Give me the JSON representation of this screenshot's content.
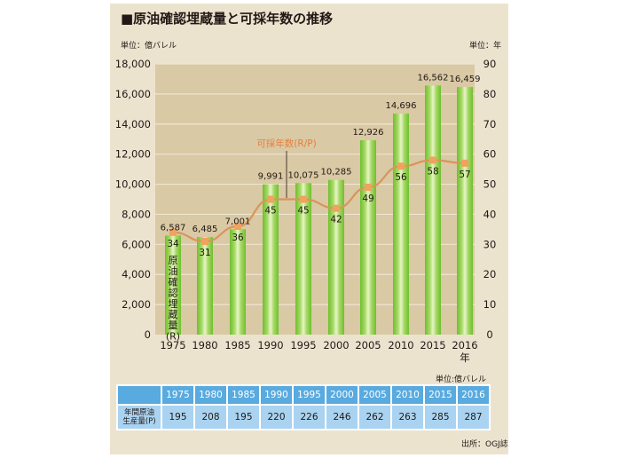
{
  "title": "■原油確認埋蔵量と可採年数の推移",
  "left_unit": "単位：億バレル",
  "right_unit": "単位：年",
  "table_unit": "単位:億バレル",
  "source": "出所：OGJ誌",
  "colors": {
    "panel_bg": "#ece3cf",
    "plot_bg": "#d9c9a4",
    "bar_green": "#8fce4a",
    "line_orange": "#d9955a",
    "marker_orange": "#f0a25f",
    "annotation_orange": "#e87e3c",
    "table_header": "#58aadf",
    "table_row": "#a9d3f0"
  },
  "chart_data": {
    "type": "bar",
    "title": "原油確認埋蔵量と可採年数の推移",
    "categories": [
      "1975",
      "1980",
      "1985",
      "1990",
      "1995",
      "2000",
      "2005",
      "2010",
      "2015",
      "2016"
    ],
    "x_suffix": "年",
    "series": [
      {
        "name": "原油確認埋蔵量(R)",
        "type": "bar",
        "axis": "left",
        "values": [
          6587,
          6485,
          7001,
          9991,
          10075,
          10285,
          12926,
          14696,
          16562,
          16459
        ],
        "labels": [
          "6,587",
          "6,485",
          "7,001",
          "9,991",
          "10,075",
          "10,285",
          "12,926",
          "14,696",
          "16,562",
          "16,459"
        ]
      },
      {
        "name": "可採年数(R/P)",
        "type": "line",
        "axis": "right",
        "values": [
          34,
          31,
          36,
          45,
          45,
          42,
          49,
          56,
          58,
          57
        ]
      }
    ],
    "bar_series_vertical_label": [
      "原",
      "油",
      "確",
      "認",
      "埋",
      "蔵",
      "量",
      "(R)"
    ],
    "line_annotation": "可採年数(R/P)",
    "left_axis": {
      "label": "単位：億バレル",
      "range": [
        0,
        18000
      ],
      "ticks": [
        "0",
        "2,000",
        "4,000",
        "6,000",
        "8,000",
        "10,000",
        "12,000",
        "14,000",
        "16,000",
        "18,000"
      ]
    },
    "right_axis": {
      "label": "単位：年",
      "range": [
        0,
        90
      ],
      "ticks": [
        "0",
        "10",
        "20",
        "30",
        "40",
        "50",
        "60",
        "70",
        "80",
        "90"
      ]
    },
    "grid": true
  },
  "table": {
    "row_header": [
      "年間原油",
      "生産量(P)"
    ],
    "years": [
      "1975",
      "1980",
      "1985",
      "1990",
      "1995",
      "2000",
      "2005",
      "2010",
      "2015",
      "2016"
    ],
    "production": [
      "195",
      "208",
      "195",
      "220",
      "226",
      "246",
      "262",
      "263",
      "285",
      "287"
    ]
  }
}
